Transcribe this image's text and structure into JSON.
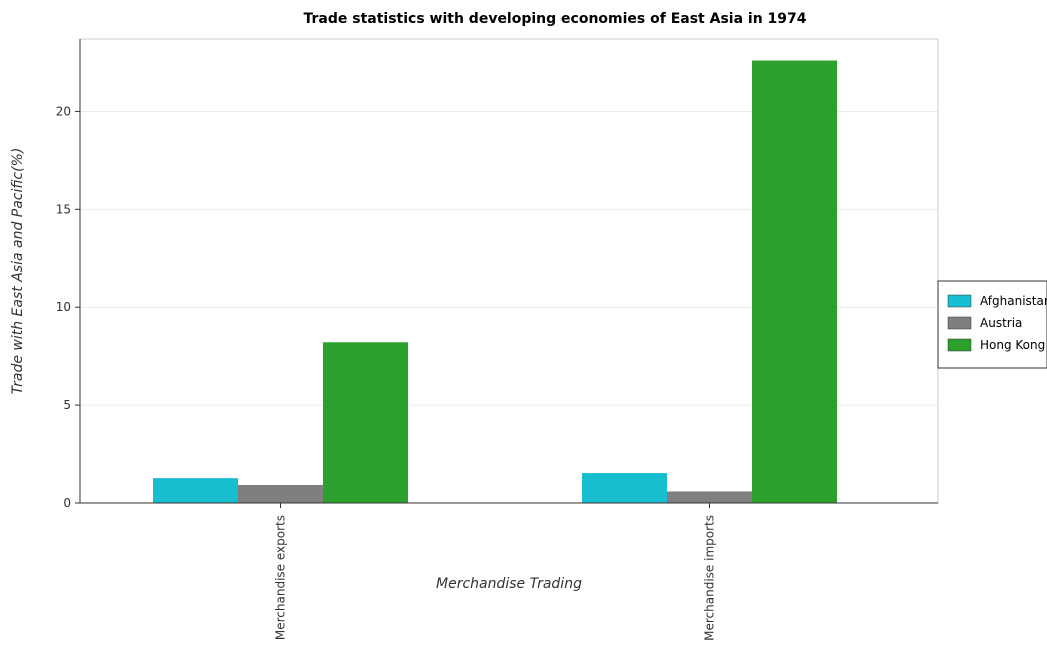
{
  "chart_data": {
    "type": "bar",
    "title": "Trade statistics with developing economies of East Asia in 1974",
    "xlabel": "Merchandise Trading",
    "ylabel": "Trade with East Asia and Pacific(%)",
    "categories": [
      "Merchandise exports",
      "Merchandise imports"
    ],
    "series": [
      {
        "name": "Afghanistan",
        "color": "#17becf",
        "values": [
          1.27,
          1.53
        ]
      },
      {
        "name": "Austria",
        "color": "#7f7f7f",
        "values": [
          0.92,
          0.59
        ]
      },
      {
        "name": "Hong Kong",
        "color": "#2ca02c",
        "values": [
          8.21,
          22.6
        ]
      }
    ],
    "ylim": [
      0,
      23.7
    ],
    "yticks": [
      0,
      5,
      10,
      15,
      20
    ],
    "grid": true,
    "legend_position": "right"
  }
}
